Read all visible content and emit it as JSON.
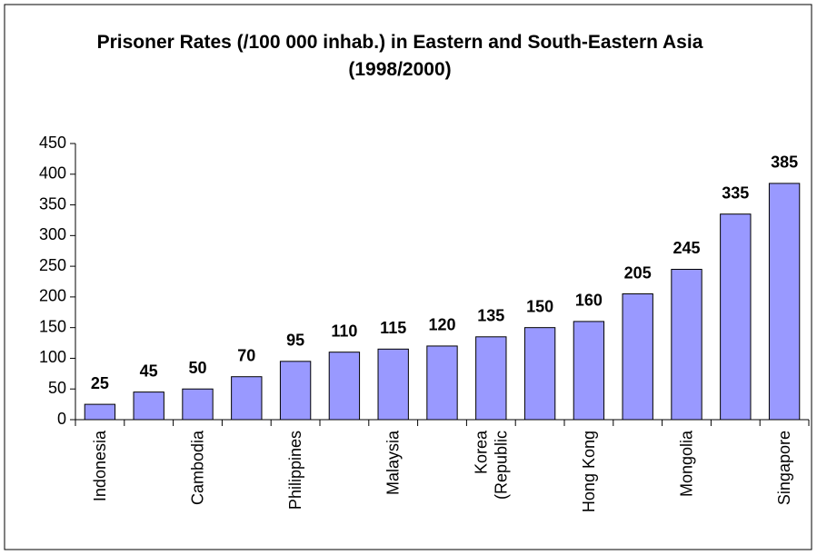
{
  "chart_data": {
    "type": "bar",
    "title": "Prisoner Rates (/100 000 inhab.) in Eastern and South-Eastern Asia (1998/2000)",
    "categories": [
      "Indonesia",
      null,
      "Cambodia",
      null,
      "Philippines",
      null,
      "Malaysia",
      null,
      "Korea (Republic",
      null,
      "Hong Kong",
      null,
      "Mongolia",
      null,
      "Singapore"
    ],
    "values": [
      25,
      45,
      50,
      70,
      95,
      110,
      115,
      120,
      135,
      150,
      160,
      205,
      245,
      335,
      385
    ],
    "color": "#9999ff",
    "ylim": [
      0,
      450
    ],
    "yticks": [
      0,
      50,
      100,
      150,
      200,
      250,
      300,
      350,
      400,
      450
    ],
    "grid": false
  }
}
